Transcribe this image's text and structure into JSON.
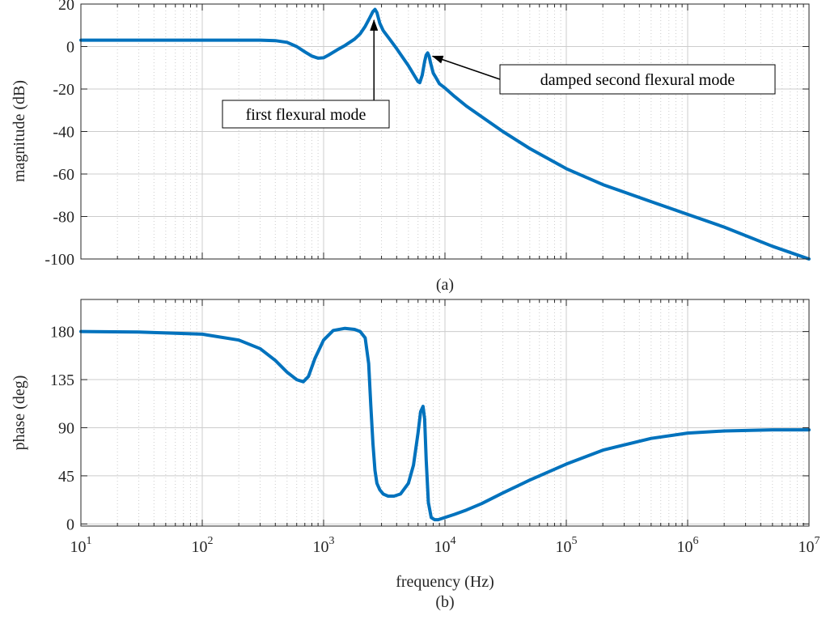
{
  "colors": {
    "series": "#0072BD",
    "grid": "#cccccc",
    "axis": "#262626",
    "background": "#ffffff"
  },
  "chart_data": [
    {
      "type": "line",
      "panel_label": "(a)",
      "ylabel": "magnitude (dB)",
      "xscale": "log",
      "xlim": [
        10,
        10000000
      ],
      "ylim": [
        -100,
        20
      ],
      "yticks": [
        20,
        0,
        -20,
        -40,
        -60,
        -80,
        -100
      ],
      "grid": true,
      "series": [
        {
          "x": [
            10,
            50,
            100,
            200,
            300,
            400,
            500,
            600,
            700,
            800,
            900,
            1000,
            1100,
            1300,
            1500,
            1800,
            2000,
            2200,
            2400,
            2550,
            2650,
            2750,
            2900,
            3100,
            3500,
            4000,
            5000,
            5500,
            6000,
            6200,
            6500,
            6800,
            7000,
            7200,
            7400,
            7600,
            7800,
            8000,
            8500,
            9000,
            10000,
            12000,
            15000,
            20000,
            30000,
            50000,
            100000,
            200000,
            500000,
            1000000,
            2000000,
            5000000,
            10000000
          ],
          "y": [
            3,
            3,
            3,
            3,
            3,
            2.8,
            2,
            0,
            -2.5,
            -4.5,
            -5.5,
            -5.3,
            -4,
            -1.5,
            0.5,
            3.5,
            6,
            9.5,
            13.5,
            16.5,
            17.5,
            16,
            11,
            7.5,
            3.5,
            -1,
            -9,
            -13,
            -16.5,
            -17,
            -13.5,
            -7,
            -4,
            -3,
            -4.5,
            -7.5,
            -10,
            -12.5,
            -15,
            -17.5,
            -19.5,
            -23.5,
            -28,
            -33,
            -40,
            -48,
            -57.5,
            -65,
            -73,
            -79,
            -85,
            -94,
            -100
          ]
        }
      ],
      "annotations": [
        {
          "text": "first flexural mode",
          "x": 2600,
          "y": 17
        },
        {
          "text": "damped second flexural mode",
          "x": 7200,
          "y": -3
        }
      ]
    },
    {
      "type": "line",
      "panel_label": "(b)",
      "xlabel": "frequency (Hz)",
      "ylabel": "phase (deg)",
      "xscale": "log",
      "xlim": [
        10,
        10000000
      ],
      "ylim": [
        -2,
        210
      ],
      "yticks": [
        180,
        135,
        90,
        45,
        0
      ],
      "xtick_labels": [
        "10",
        "10",
        "10",
        "10",
        "10",
        "10",
        "10"
      ],
      "xtick_exponents": [
        "1",
        "2",
        "3",
        "4",
        "5",
        "6",
        "7"
      ],
      "grid": true,
      "series": [
        {
          "x": [
            10,
            30,
            100,
            200,
            300,
            400,
            500,
            600,
            680,
            750,
            850,
            1000,
            1200,
            1500,
            1800,
            2000,
            2200,
            2350,
            2450,
            2550,
            2650,
            2750,
            2900,
            3100,
            3400,
            3800,
            4300,
            5000,
            5500,
            6000,
            6300,
            6600,
            6800,
            7000,
            7300,
            7700,
            8200,
            8800,
            10000,
            12000,
            15000,
            20000,
            30000,
            50000,
            100000,
            200000,
            500000,
            1000000,
            2000000,
            5000000,
            10000000
          ],
          "y": [
            180,
            179.5,
            177.5,
            172,
            164,
            153,
            142,
            135,
            133,
            138,
            155,
            172,
            181,
            183,
            182,
            180,
            174,
            150,
            110,
            75,
            50,
            38,
            32,
            28,
            26,
            26,
            28,
            38,
            55,
            85,
            105,
            110,
            98,
            60,
            20,
            6,
            4,
            4,
            6,
            9,
            13,
            19,
            29,
            41,
            56,
            69,
            80,
            85,
            87,
            88,
            88
          ]
        }
      ]
    }
  ]
}
